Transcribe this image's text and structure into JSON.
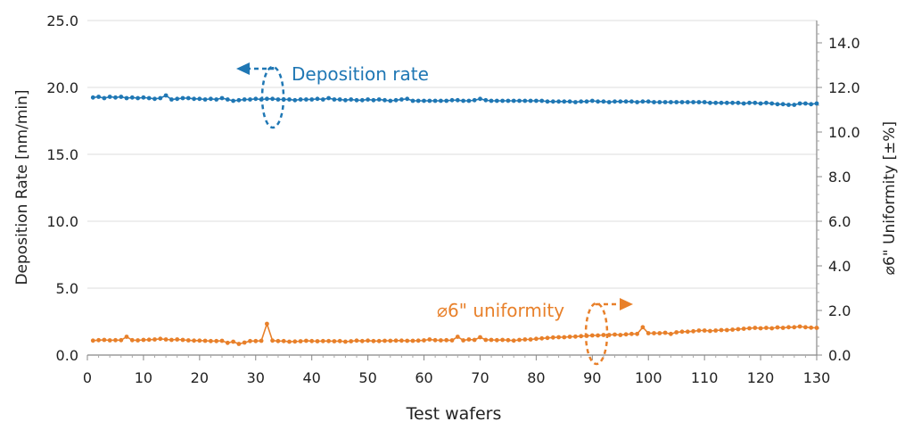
{
  "chart_data": {
    "type": "line",
    "xlabel": "Test wafers",
    "ylabel_left": "Deposition Rate [nm/min]",
    "ylabel_right": "⌀6\" Uniformity [±%]",
    "x_ticks": [
      "0",
      "10",
      "20",
      "30",
      "40",
      "50",
      "60",
      "70",
      "80",
      "90",
      "100",
      "110",
      "120",
      "130"
    ],
    "y_left_ticks": [
      "0.0",
      "5.0",
      "10.0",
      "15.0",
      "20.0",
      "25.0"
    ],
    "y_right_ticks": [
      "0.0",
      "2.0",
      "4.0",
      "6.0",
      "8.0",
      "10.0",
      "12.0",
      "14.0"
    ],
    "xlim": [
      0,
      130
    ],
    "ylim_left": [
      0,
      25
    ],
    "ylim_right": [
      0,
      15
    ],
    "grid": "horizontal",
    "colors": {
      "deposition": "#1f77b4",
      "uniformity": "#e8802a"
    },
    "annotations": {
      "deposition": "Deposition rate",
      "uniformity": "⌀6\" uniformity"
    },
    "series": [
      {
        "axis": "left",
        "x_start": 1,
        "values": [
          19.25,
          19.3,
          19.2,
          19.3,
          19.25,
          19.3,
          19.2,
          19.25,
          19.2,
          19.25,
          19.2,
          19.15,
          19.2,
          19.4,
          19.1,
          19.15,
          19.2,
          19.2,
          19.15,
          19.15,
          19.1,
          19.15,
          19.1,
          19.2,
          19.1,
          19.0,
          19.05,
          19.1,
          19.1,
          19.15,
          19.1,
          19.15,
          19.15,
          19.1,
          19.1,
          19.1,
          19.05,
          19.1,
          19.1,
          19.1,
          19.15,
          19.1,
          19.2,
          19.1,
          19.1,
          19.05,
          19.1,
          19.05,
          19.05,
          19.1,
          19.05,
          19.1,
          19.05,
          19.0,
          19.05,
          19.1,
          19.15,
          19.0,
          19.0,
          19.0,
          19.0,
          19.0,
          19.0,
          19.0,
          19.05,
          19.05,
          19.0,
          19.0,
          19.05,
          19.15,
          19.05,
          19.0,
          19.0,
          19.0,
          19.0,
          19.0,
          19.0,
          19.0,
          19.0,
          19.0,
          19.0,
          18.95,
          18.95,
          18.95,
          18.95,
          18.95,
          18.9,
          18.95,
          18.95,
          19.0,
          18.95,
          18.95,
          18.9,
          18.95,
          18.95,
          18.95,
          18.95,
          18.9,
          18.95,
          18.95,
          18.9,
          18.9,
          18.9,
          18.9,
          18.9,
          18.9,
          18.9,
          18.9,
          18.9,
          18.9,
          18.85,
          18.85,
          18.85,
          18.85,
          18.85,
          18.85,
          18.8,
          18.85,
          18.85,
          18.8,
          18.85,
          18.8,
          18.75,
          18.75,
          18.7,
          18.7,
          18.8,
          18.8,
          18.75,
          18.8
        ]
      },
      {
        "axis": "right",
        "x_start": 1,
        "values": [
          0.65,
          0.67,
          0.68,
          0.66,
          0.67,
          0.67,
          0.82,
          0.67,
          0.66,
          0.68,
          0.69,
          0.7,
          0.73,
          0.7,
          0.68,
          0.7,
          0.68,
          0.66,
          0.65,
          0.65,
          0.64,
          0.63,
          0.63,
          0.64,
          0.55,
          0.6,
          0.5,
          0.56,
          0.63,
          0.63,
          0.64,
          1.4,
          0.65,
          0.63,
          0.63,
          0.6,
          0.61,
          0.62,
          0.64,
          0.63,
          0.62,
          0.63,
          0.63,
          0.62,
          0.63,
          0.6,
          0.62,
          0.65,
          0.63,
          0.65,
          0.63,
          0.63,
          0.64,
          0.64,
          0.65,
          0.65,
          0.64,
          0.64,
          0.65,
          0.66,
          0.7,
          0.67,
          0.66,
          0.67,
          0.66,
          0.82,
          0.66,
          0.7,
          0.68,
          0.8,
          0.68,
          0.68,
          0.67,
          0.68,
          0.67,
          0.65,
          0.68,
          0.7,
          0.7,
          0.73,
          0.75,
          0.77,
          0.79,
          0.8,
          0.8,
          0.82,
          0.83,
          0.85,
          0.86,
          0.88,
          0.88,
          0.9,
          0.9,
          0.92,
          0.9,
          0.93,
          0.95,
          0.95,
          1.25,
          0.98,
          0.98,
          0.98,
          1.0,
          0.95,
          1.02,
          1.05,
          1.05,
          1.07,
          1.1,
          1.1,
          1.08,
          1.1,
          1.12,
          1.12,
          1.14,
          1.16,
          1.18,
          1.2,
          1.22,
          1.2,
          1.22,
          1.2,
          1.24,
          1.22,
          1.25,
          1.25,
          1.28,
          1.25,
          1.23,
          1.22
        ]
      }
    ]
  }
}
